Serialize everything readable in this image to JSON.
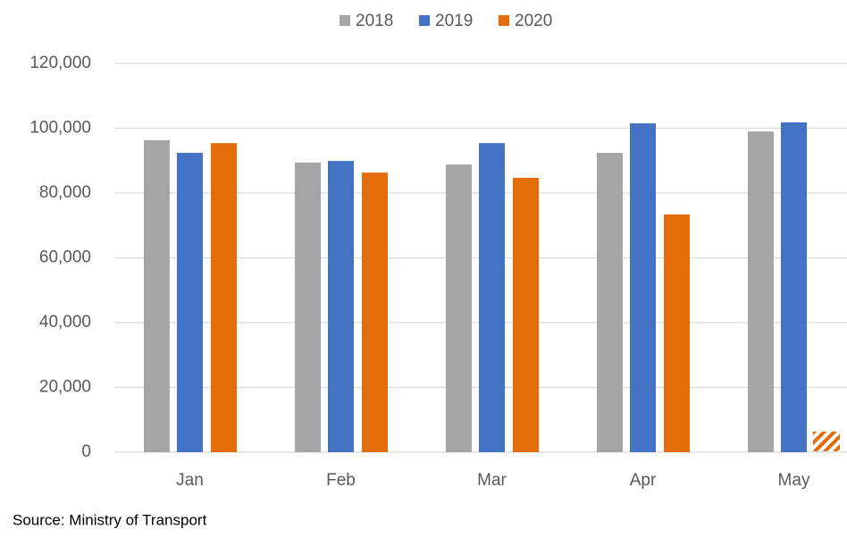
{
  "chart_data": {
    "type": "bar",
    "categories": [
      "Jan",
      "Feb",
      "Mar",
      "Apr",
      "May"
    ],
    "series": [
      {
        "name": "2018",
        "color": "#a5a5a5",
        "values": [
          96300,
          89400,
          88800,
          92400,
          99000
        ]
      },
      {
        "name": "2019",
        "color": "#4472c4",
        "values": [
          92400,
          89900,
          95400,
          101500,
          101800
        ]
      },
      {
        "name": "2020",
        "color": "#e46c0a",
        "values": [
          95400,
          86300,
          84700,
          73400,
          null
        ]
      }
    ],
    "ylim": [
      0,
      120000
    ],
    "yticks": [
      {
        "value": 0,
        "label": "0"
      },
      {
        "value": 20000,
        "label": "20,000"
      },
      {
        "value": 40000,
        "label": "40,000"
      },
      {
        "value": 60000,
        "label": "60,000"
      },
      {
        "value": 80000,
        "label": "80,000"
      },
      {
        "value": 100000,
        "label": "100,000"
      },
      {
        "value": 120000,
        "label": "120,000"
      }
    ],
    "grid": true,
    "legend": "top",
    "source": "Source: Ministry of Transport"
  }
}
